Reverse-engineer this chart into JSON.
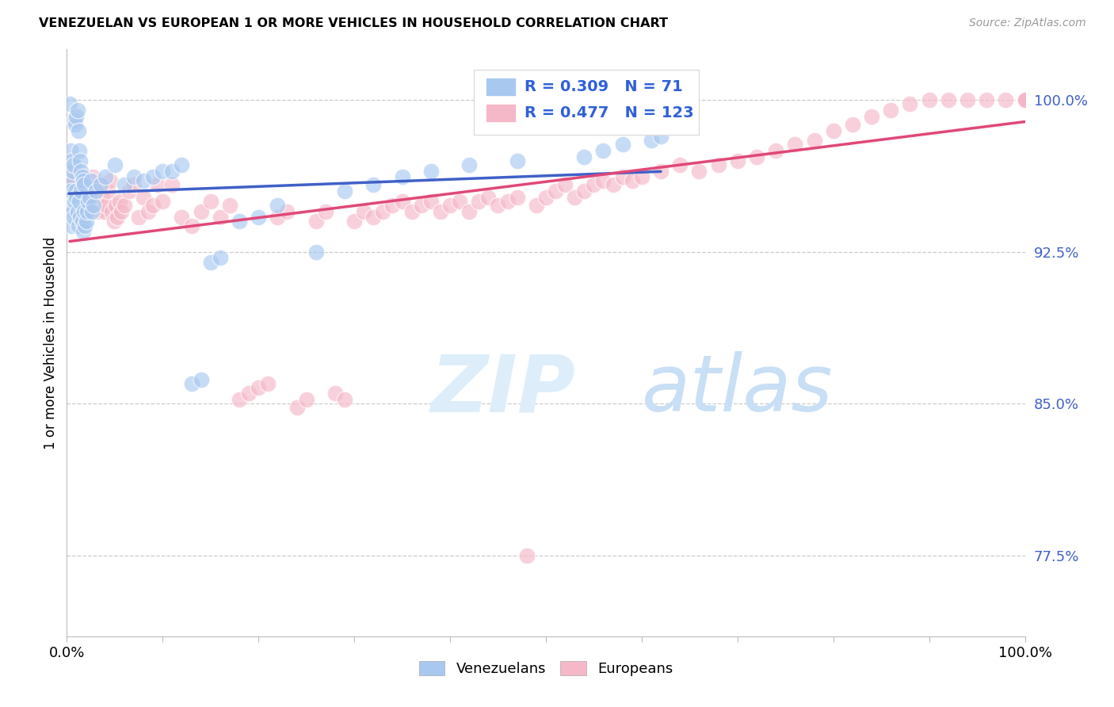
{
  "title": "VENEZUELAN VS EUROPEAN 1 OR MORE VEHICLES IN HOUSEHOLD CORRELATION CHART",
  "source": "Source: ZipAtlas.com",
  "ylabel": "1 or more Vehicles in Household",
  "y_tick_labels": [
    "77.5%",
    "85.0%",
    "92.5%",
    "100.0%"
  ],
  "y_tick_values": [
    0.775,
    0.85,
    0.925,
    1.0
  ],
  "xlim": [
    0.0,
    1.0
  ],
  "ylim": [
    0.735,
    1.025
  ],
  "legend_labels": [
    "Venezuelans",
    "Europeans"
  ],
  "legend_r_values": [
    "0.309",
    "0.477"
  ],
  "legend_n_values": [
    "71",
    "123"
  ],
  "venezuelan_color": "#a8c8f0",
  "european_color": "#f5b8c8",
  "venezuelan_line_color": "#4060c8",
  "european_line_color": "#e04878",
  "watermark_zip": "ZIP",
  "watermark_atlas": "atlas",
  "watermark_color": "#ddeefa",
  "venezuelan_x": [
    0.002,
    0.003,
    0.004,
    0.005,
    0.006,
    0.007,
    0.008,
    0.009,
    0.01,
    0.011,
    0.012,
    0.013,
    0.014,
    0.015,
    0.016,
    0.017,
    0.018,
    0.019,
    0.02,
    0.021,
    0.022,
    0.024,
    0.026,
    0.028,
    0.003,
    0.004,
    0.005,
    0.006,
    0.007,
    0.008,
    0.009,
    0.01,
    0.011,
    0.012,
    0.013,
    0.014,
    0.015,
    0.016,
    0.017,
    0.018,
    0.025,
    0.03,
    0.035,
    0.04,
    0.05,
    0.06,
    0.07,
    0.08,
    0.09,
    0.1,
    0.11,
    0.12,
    0.13,
    0.14,
    0.15,
    0.16,
    0.18,
    0.2,
    0.22,
    0.26,
    0.29,
    0.32,
    0.35,
    0.38,
    0.42,
    0.47,
    0.54,
    0.56,
    0.58,
    0.61,
    0.62
  ],
  "venezuelan_y": [
    0.96,
    0.948,
    0.955,
    0.938,
    0.945,
    0.942,
    0.95,
    0.955,
    0.952,
    0.945,
    0.938,
    0.95,
    0.942,
    0.955,
    0.94,
    0.935,
    0.945,
    0.938,
    0.94,
    0.945,
    0.95,
    0.952,
    0.945,
    0.948,
    0.998,
    0.975,
    0.97,
    0.965,
    0.968,
    0.99,
    0.988,
    0.992,
    0.995,
    0.985,
    0.975,
    0.97,
    0.965,
    0.962,
    0.96,
    0.958,
    0.96,
    0.955,
    0.958,
    0.962,
    0.968,
    0.958,
    0.962,
    0.96,
    0.962,
    0.965,
    0.965,
    0.968,
    0.86,
    0.862,
    0.92,
    0.922,
    0.94,
    0.942,
    0.948,
    0.925,
    0.955,
    0.958,
    0.962,
    0.965,
    0.968,
    0.97,
    0.972,
    0.975,
    0.978,
    0.98,
    0.982
  ],
  "european_x": [
    0.003,
    0.005,
    0.007,
    0.009,
    0.011,
    0.013,
    0.015,
    0.017,
    0.019,
    0.021,
    0.023,
    0.025,
    0.027,
    0.029,
    0.031,
    0.033,
    0.035,
    0.037,
    0.039,
    0.041,
    0.043,
    0.045,
    0.047,
    0.049,
    0.051,
    0.053,
    0.055,
    0.057,
    0.06,
    0.065,
    0.07,
    0.075,
    0.08,
    0.085,
    0.09,
    0.095,
    0.1,
    0.11,
    0.12,
    0.13,
    0.14,
    0.15,
    0.16,
    0.17,
    0.18,
    0.19,
    0.2,
    0.21,
    0.22,
    0.23,
    0.24,
    0.25,
    0.26,
    0.27,
    0.28,
    0.29,
    0.3,
    0.31,
    0.32,
    0.33,
    0.34,
    0.35,
    0.36,
    0.37,
    0.38,
    0.39,
    0.4,
    0.41,
    0.42,
    0.43,
    0.44,
    0.45,
    0.46,
    0.47,
    0.48,
    0.49,
    0.5,
    0.51,
    0.52,
    0.53,
    0.54,
    0.55,
    0.56,
    0.57,
    0.58,
    0.59,
    0.6,
    0.62,
    0.64,
    0.66,
    0.68,
    0.7,
    0.72,
    0.74,
    0.76,
    0.78,
    0.8,
    0.82,
    0.84,
    0.86,
    0.88,
    0.9,
    0.92,
    0.94,
    0.96,
    0.98,
    1.0,
    1.0,
    1.0,
    1.0,
    1.0,
    1.0,
    1.0,
    1.0,
    1.0,
    1.0,
    1.0,
    1.0,
    1.0,
    1.0,
    1.0,
    1.0,
    1.0
  ],
  "european_y": [
    0.965,
    0.958,
    0.96,
    0.952,
    0.955,
    0.948,
    0.958,
    0.962,
    0.945,
    0.95,
    0.955,
    0.948,
    0.962,
    0.955,
    0.95,
    0.945,
    0.958,
    0.952,
    0.945,
    0.948,
    0.955,
    0.96,
    0.945,
    0.94,
    0.948,
    0.942,
    0.95,
    0.945,
    0.948,
    0.955,
    0.958,
    0.942,
    0.952,
    0.945,
    0.948,
    0.958,
    0.95,
    0.958,
    0.942,
    0.938,
    0.945,
    0.95,
    0.942,
    0.948,
    0.852,
    0.855,
    0.858,
    0.86,
    0.942,
    0.945,
    0.848,
    0.852,
    0.94,
    0.945,
    0.855,
    0.852,
    0.94,
    0.945,
    0.942,
    0.945,
    0.948,
    0.95,
    0.945,
    0.948,
    0.95,
    0.945,
    0.948,
    0.95,
    0.945,
    0.95,
    0.952,
    0.948,
    0.95,
    0.952,
    0.775,
    0.948,
    0.952,
    0.955,
    0.958,
    0.952,
    0.955,
    0.958,
    0.96,
    0.958,
    0.962,
    0.96,
    0.962,
    0.965,
    0.968,
    0.965,
    0.968,
    0.97,
    0.972,
    0.975,
    0.978,
    0.98,
    0.985,
    0.988,
    0.992,
    0.995,
    0.998,
    1.0,
    1.0,
    1.0,
    1.0,
    1.0,
    1.0,
    1.0,
    1.0,
    1.0,
    1.0,
    1.0,
    1.0,
    1.0,
    1.0,
    1.0,
    1.0,
    1.0,
    1.0,
    1.0,
    1.0,
    1.0,
    1.0
  ]
}
